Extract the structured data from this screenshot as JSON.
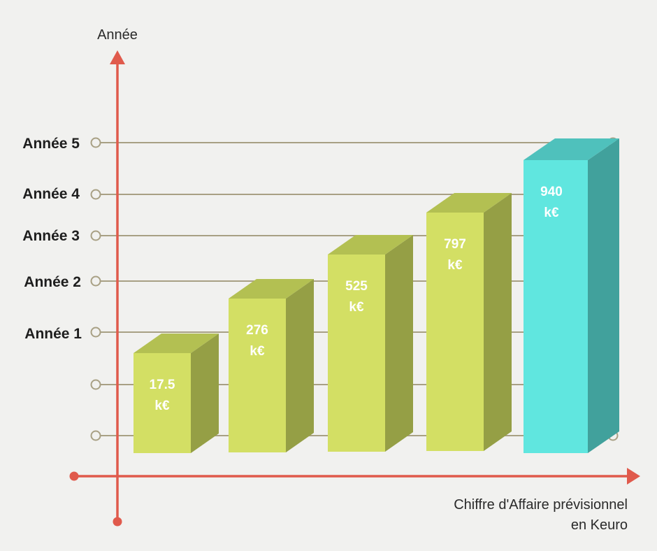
{
  "chart_data": {
    "type": "bar",
    "title": "",
    "y_axis_title": "Année",
    "x_axis_title_lines": [
      "Chiffre d'Affaire prévisionnel",
      "en Keuro"
    ],
    "categories": [
      "Année 1",
      "Année 2",
      "Année 3",
      "Année 4",
      "Année 5"
    ],
    "row_labels": [
      "Année 5",
      "Année 4",
      "Année 3",
      "Année 2",
      "Année 1"
    ],
    "values": [
      17.5,
      276,
      525,
      797,
      940
    ],
    "value_labels": [
      [
        "17.5",
        "k€"
      ],
      [
        "276",
        "k€"
      ],
      [
        "525",
        "k€"
      ],
      [
        "797",
        "k€"
      ],
      [
        "940",
        "k€"
      ]
    ],
    "unit": "k€",
    "grid": true,
    "colors": {
      "axis": "#e05a4c",
      "grid": "#a8a084",
      "bar_front": "#d3df64",
      "bar_top": "#b3c052",
      "bar_side": "#959f45",
      "highlight_front": "#60e6df",
      "highlight_top": "#4fc1bc",
      "highlight_side": "#41a19c"
    },
    "highlight_index": 4
  }
}
